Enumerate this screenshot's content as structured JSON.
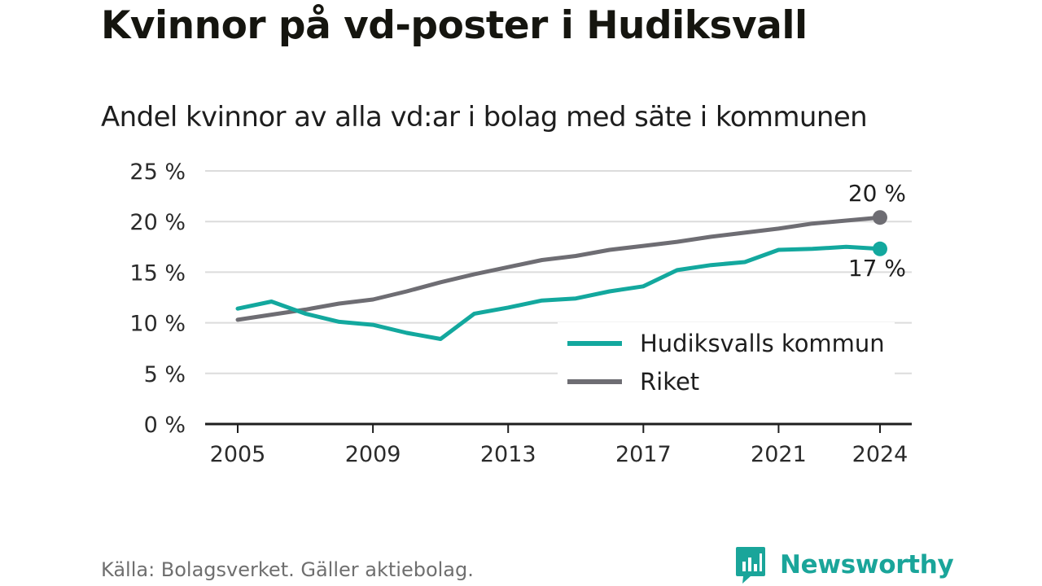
{
  "title": "Kvinnor på vd-poster i Hudiksvall",
  "subtitle": "Andel kvinnor av alla vd:ar i bolag med säte i kommunen",
  "source": "Källa: Bolagsverket. Gäller aktiebolag.",
  "brand": {
    "name": "Newsworthy",
    "icon": "chart-bubble-icon",
    "color": "#1aa59a"
  },
  "chart_data": {
    "type": "line",
    "title": "",
    "xlabel": "",
    "ylabel": "",
    "ylim": [
      0,
      25
    ],
    "xlim": [
      2005,
      2024
    ],
    "grid": true,
    "legend_position": "bottom-right",
    "y_ticks": [
      0,
      5,
      10,
      15,
      20,
      25
    ],
    "y_tick_labels": [
      "0 %",
      "5 %",
      "10 %",
      "15 %",
      "20 %",
      "25 %"
    ],
    "x_ticks": [
      2005,
      2009,
      2013,
      2017,
      2021,
      2024
    ],
    "x_tick_labels": [
      "2005",
      "2009",
      "2013",
      "2017",
      "2021",
      "2024"
    ],
    "x": [
      2005,
      2006,
      2007,
      2008,
      2009,
      2010,
      2011,
      2012,
      2013,
      2014,
      2015,
      2016,
      2017,
      2018,
      2019,
      2020,
      2021,
      2022,
      2023,
      2024
    ],
    "series": [
      {
        "name": "Hudiksvalls kommun",
        "color": "#13a89e",
        "values": [
          11.4,
          12.1,
          10.9,
          10.1,
          9.8,
          9.0,
          8.4,
          10.9,
          11.5,
          12.2,
          12.4,
          13.1,
          13.6,
          15.2,
          15.7,
          16.0,
          17.2,
          17.3,
          17.5,
          17.3
        ],
        "end_label": "17 %"
      },
      {
        "name": "Riket",
        "color": "#6e6d73",
        "values": [
          10.3,
          10.8,
          11.3,
          11.9,
          12.3,
          13.1,
          14.0,
          14.8,
          15.5,
          16.2,
          16.6,
          17.2,
          17.6,
          18.0,
          18.5,
          18.9,
          19.3,
          19.8,
          20.1,
          20.4
        ],
        "end_label": "20 %"
      }
    ]
  }
}
